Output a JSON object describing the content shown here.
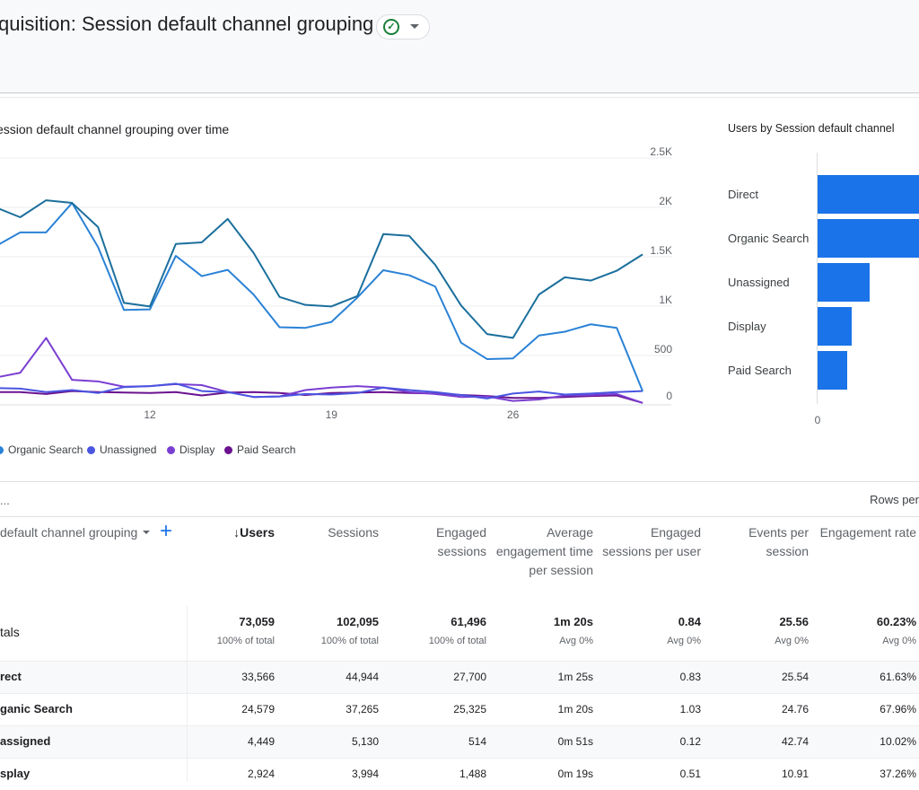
{
  "header": {
    "title": "quisition: Session default channel grouping",
    "status_icon": "check-circle-icon"
  },
  "line_card": {
    "title": "ession default channel grouping over time"
  },
  "bar_card": {
    "title": "Users by Session default channel"
  },
  "chart_data": [
    {
      "type": "line",
      "y_ticks": [
        "2.5K",
        "2K",
        "1.5K",
        "1K",
        "500",
        "0"
      ],
      "ylim": [
        0,
        2500
      ],
      "x_ticks": [
        "12",
        "19",
        "26"
      ],
      "grid": true,
      "legend": "bottom",
      "x": [
        6,
        7,
        8,
        9,
        10,
        11,
        12,
        13,
        14,
        15,
        16,
        17,
        18,
        19,
        20,
        21,
        22,
        23,
        24,
        25,
        26,
        27,
        28,
        29,
        30,
        31
      ],
      "series": [
        {
          "key": "direct",
          "color": "#1b6f9c",
          "values": [
            2006,
            1900,
            2072,
            2045,
            1801,
            1033,
            997,
            1630,
            1645,
            1883,
            1539,
            1093,
            1012,
            997,
            1102,
            1729,
            1711,
            1419,
            1006,
            717,
            678,
            1117,
            1292,
            1259,
            1358,
            1524
          ]
        },
        {
          "name": "Organic Search",
          "color": "#2a82d6",
          "values": [
            1599,
            1747,
            1747,
            2045,
            1599,
            961,
            967,
            1509,
            1304,
            1367,
            1117,
            786,
            780,
            840,
            1087,
            1364,
            1313,
            1199,
            629,
            464,
            470,
            702,
            741,
            816,
            780,
            139
          ]
        },
        {
          "name": "Unassigned",
          "color": "#4a55e0",
          "values": [
            170,
            165,
            130,
            150,
            120,
            180,
            190,
            215,
            140,
            130,
            80,
            85,
            110,
            105,
            120,
            175,
            150,
            130,
            100,
            65,
            115,
            135,
            105,
            115,
            130,
            140
          ]
        },
        {
          "name": "Display",
          "color": "#7a3fd2",
          "values": [
            274,
            325,
            678,
            253,
            238,
            184,
            190,
            210,
            200,
            130,
            80,
            85,
            150,
            175,
            190,
            175,
            130,
            110,
            80,
            85,
            40,
            55,
            95,
            100,
            110,
            20
          ]
        },
        {
          "name": "Paid Search",
          "color": "#6a128f",
          "values": [
            130,
            130,
            110,
            140,
            130,
            125,
            120,
            130,
            95,
            125,
            130,
            120,
            100,
            120,
            125,
            130,
            120,
            115,
            100,
            90,
            70,
            70,
            80,
            90,
            95,
            20
          ]
        }
      ]
    },
    {
      "type": "bar",
      "orientation": "horizontal",
      "categories": [
        "Direct",
        "Organic Search",
        "Unassigned",
        "Display",
        "Paid Search"
      ],
      "values": [
        33566,
        24579,
        4449,
        2924,
        2540
      ],
      "x_ticks": [
        "0"
      ],
      "color": "#1a73e8"
    }
  ],
  "legend": [
    "Organic Search",
    "Unassigned",
    "Display",
    "Paid Search"
  ],
  "table": {
    "ellipsis": "...",
    "rows_per_page_label": "Rows per",
    "dimension_header": "default channel grouping",
    "add_icon": "plus-icon",
    "columns": [
      "↓Users",
      "Sessions",
      "Engaged sessions",
      "Average engagement time per session",
      "Engaged sessions per user",
      "Events per session",
      "Engagement rate"
    ],
    "totals_label": "tals",
    "totals": [
      {
        "v": "73,059",
        "s": "100% of total"
      },
      {
        "v": "102,095",
        "s": "100% of total"
      },
      {
        "v": "61,496",
        "s": "100% of total"
      },
      {
        "v": "1m 20s",
        "s": "Avg 0%"
      },
      {
        "v": "0.84",
        "s": "Avg 0%"
      },
      {
        "v": "25.56",
        "s": "Avg 0%"
      },
      {
        "v": "60.23%",
        "s": "Avg 0%"
      }
    ],
    "rows": [
      {
        "label": "rect",
        "cells": [
          "33,566",
          "44,944",
          "27,700",
          "1m 25s",
          "0.83",
          "25.54",
          "61.63%"
        ]
      },
      {
        "label": "ganic Search",
        "cells": [
          "24,579",
          "37,265",
          "25,325",
          "1m 20s",
          "1.03",
          "24.76",
          "67.96%"
        ]
      },
      {
        "label": "assigned",
        "cells": [
          "4,449",
          "5,130",
          "514",
          "0m 51s",
          "0.12",
          "42.74",
          "10.02%"
        ]
      },
      {
        "label": "splay",
        "cells": [
          "2,924",
          "3,994",
          "1,488",
          "0m 19s",
          "0.51",
          "10.91",
          "37.26%"
        ]
      }
    ]
  }
}
